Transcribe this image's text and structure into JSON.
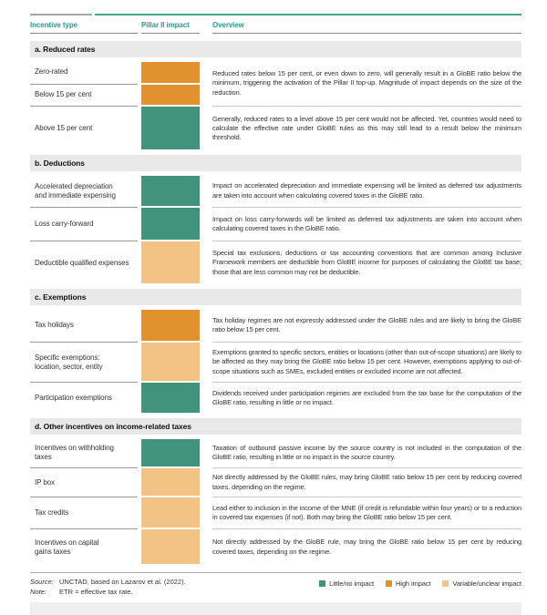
{
  "table": {
    "columns": [
      "Incentive type",
      "Pillar II impact",
      "Overview"
    ],
    "sections": [
      {
        "title": "a. Reduced rates",
        "groups": [
          {
            "rows": [
              {
                "label": "Zero-rated",
                "impact": "high"
              },
              {
                "label": "Below 15 per cent",
                "impact": "high"
              }
            ],
            "overview": "Reduced rates below 15 per cent, or even down to zero, will generally result in a GloBE ratio below the minimum, triggering the activation of the Pillar II top-up. Magnitude of impact depends on the size of the reduction."
          },
          {
            "rows": [
              {
                "label": "Above 15 per cent",
                "impact": "little"
              }
            ],
            "overview": "Generally, reduced rates to a level above 15 per cent would not be affected. Yet, countries would need to calculate the effective rate under GloBE rules as this may still lead to a result below the minimum threshold."
          }
        ]
      },
      {
        "title": "b. Deductions",
        "groups": [
          {
            "rows": [
              {
                "label": "Accelerated depreciation\nand immediate expensing",
                "impact": "little"
              }
            ],
            "overview": "Impact on accelerated depreciation and immediate expensing will be limited as deferred tax adjustments are taken into account when calculating covered taxes in the GloBE ratio."
          },
          {
            "rows": [
              {
                "label": "Loss carry-forward",
                "impact": "little"
              }
            ],
            "overview": "Impact on loss carry-forwards will be limited as deferred tax adjustments are taken into account when calculating covered taxes in the GloBE ratio."
          },
          {
            "rows": [
              {
                "label": "Deductible qualified expenses",
                "impact": "variable"
              }
            ],
            "overview": "Special tax exclusions, deductions or tax accounting conventions that are common among Inclusive Framework members are deductible from GloBE income for purposes of calculating the GloBE tax base; those that are less common may not be deductible."
          }
        ]
      },
      {
        "title": "c. Exemptions",
        "groups": [
          {
            "rows": [
              {
                "label": "Tax holidays",
                "impact": "high"
              }
            ],
            "overview": "Tax holiday regimes are not expressly addressed under the GloBE rules and are likely to bring the GloBE ratio below 15 per cent."
          },
          {
            "rows": [
              {
                "label": "Specific exemptions:\nlocation, sector, entity",
                "impact": "variable"
              }
            ],
            "overview": "Exemptions granted to specific sectors, entities or locations (other than out-of-scope situations) are likely to be affected as they may bring the GloBE ratio below 15 per cent. However, exemptions applying to out-of-scope situations such as SMEs, excluded entities or excluded income are not affected."
          },
          {
            "rows": [
              {
                "label": "Participation exemptions",
                "impact": "little"
              }
            ],
            "overview": "Dividends received under participation regimes are excluded from the tax base for the computation of the GloBE ratio, resulting in little or no impact."
          }
        ]
      },
      {
        "title": "d. Other incentives on income-related taxes",
        "groups": [
          {
            "rows": [
              {
                "label": "Incentives on withholding taxes",
                "impact": "little"
              }
            ],
            "overview": "Taxation of outbound passive income by the source country is not included in the computation of the GloBE ratio, resulting in little or no impact in the source country."
          },
          {
            "rows": [
              {
                "label": "IP box",
                "impact": "variable"
              }
            ],
            "overview": "Not directly addressed by the GloBE rules, may bring GloBE ratio below 15 per cent by reducing covered taxes, depending on the regime."
          },
          {
            "rows": [
              {
                "label": "Tax credits",
                "impact": "variable"
              }
            ],
            "overview": "Lead either to inclusion in the income of the MNE (if credit is refundable within four years) or to a reduction in covered tax expenses (if not). Both may bring the GloBE ratio below 15 per cent."
          },
          {
            "rows": [
              {
                "label": "Incentives on capital\ngains taxes",
                "impact": "variable"
              }
            ],
            "overview": "Not directly addressed by the GloBE rule, may bring the GloBE ratio below 15 per cent by reducing covered taxes, depending on the regime."
          }
        ]
      }
    ]
  },
  "legend": [
    {
      "key": "little",
      "label": "Little/no impact"
    },
    {
      "key": "high",
      "label": "High impact"
    },
    {
      "key": "variable",
      "label": "Variable/unclear impact"
    }
  ],
  "footer": {
    "source_label": "Source:",
    "source_text": "UNCTAD, based on Lazarov et al. (2022).",
    "note_label": "Note:",
    "note_text": "ETR = effective tax rate."
  },
  "colors": {
    "little": "#42937B",
    "high": "#E2912F",
    "variable": "#F3C386",
    "header_teal": "#2E988A"
  }
}
